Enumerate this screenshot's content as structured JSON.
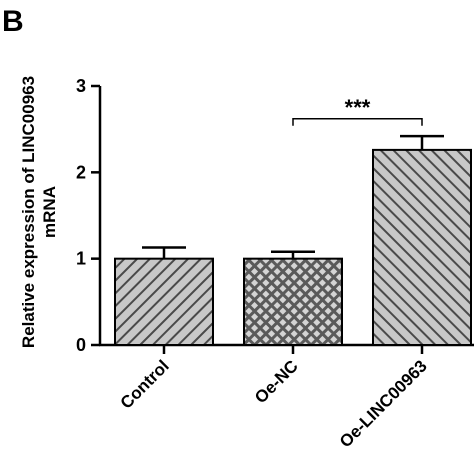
{
  "panel_label": "B",
  "chart_data": {
    "type": "bar",
    "categories": [
      "Control",
      "Oe-NC",
      "Oe-LINC00963"
    ],
    "values": [
      1.0,
      1.0,
      2.26
    ],
    "errors": [
      0.13,
      0.08,
      0.16
    ],
    "patterns": [
      "diagonal-down",
      "crosshatch",
      "diagonal-up"
    ],
    "ylabel_line1": "Relative expression of LINC00963",
    "ylabel_line2": "mRNA",
    "xlabel": "",
    "ylim": [
      0,
      3
    ],
    "yticks": [
      0,
      1,
      2,
      3
    ],
    "significance": {
      "from_category": 1,
      "to_category": 2,
      "label": "***"
    },
    "grid": false,
    "legend": "none"
  }
}
